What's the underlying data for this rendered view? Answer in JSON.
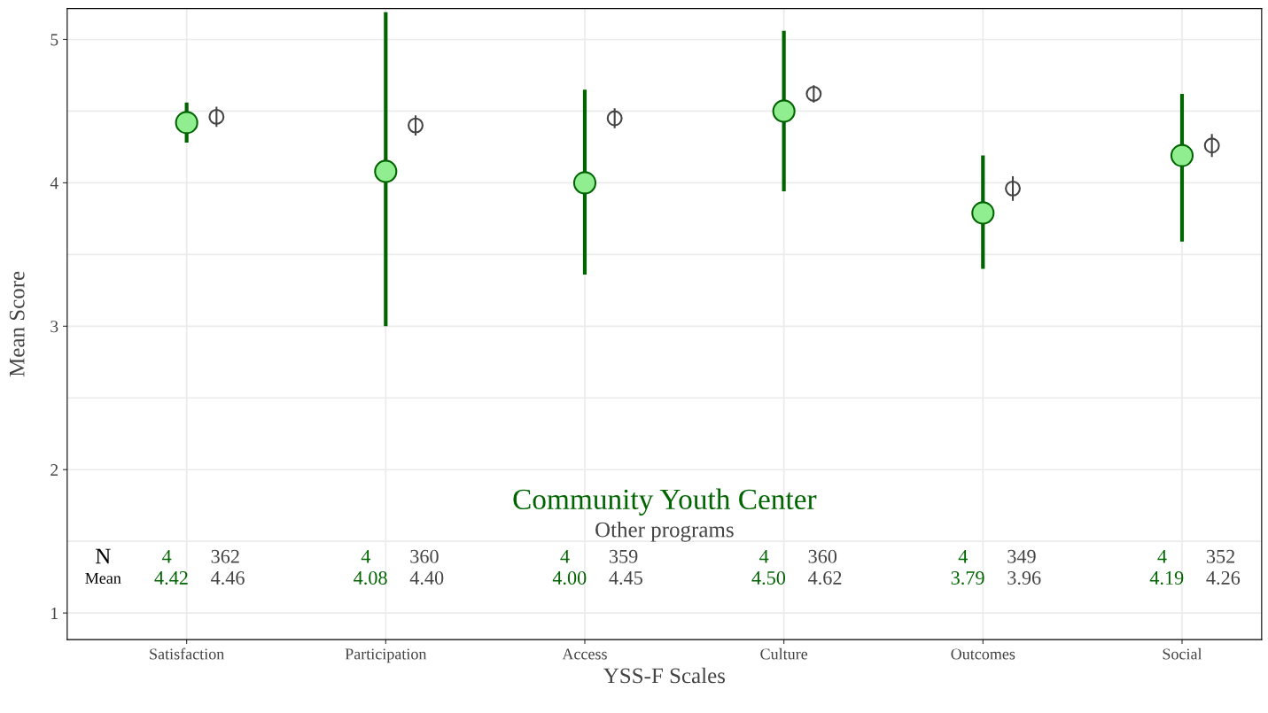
{
  "chart_data": {
    "type": "scatter",
    "xlabel": "YSS-F Scales",
    "ylabel": "Mean Score",
    "categories": [
      "Satisfaction",
      "Participation",
      "Access",
      "Culture",
      "Outcomes",
      "Social"
    ],
    "series": [
      {
        "name": "Community Youth Center",
        "color": "#006400",
        "marker": "circle",
        "values": [
          4.42,
          4.08,
          4.0,
          4.5,
          3.79,
          4.19
        ],
        "errors": [
          [
            4.28,
            4.56
          ],
          [
            3.0,
            5.19
          ],
          [
            3.36,
            4.65
          ],
          [
            3.94,
            5.06
          ],
          [
            3.4,
            4.19
          ],
          [
            3.59,
            4.62
          ]
        ]
      },
      {
        "name": "Other programs",
        "color": "#444444",
        "marker": "circle",
        "values": [
          4.46,
          4.4,
          4.45,
          4.62,
          3.96,
          4.26
        ],
        "errors": [
          0.07,
          0.07,
          0.07,
          0.06,
          0.085,
          0.08
        ]
      }
    ],
    "annotations": [
      "N",
      "Mean",
      "4",
      "362",
      "4.42",
      "4.46",
      "4",
      "360",
      "4.08",
      "4.40",
      "4",
      "359",
      "4.00",
      "4.45",
      "4",
      "360",
      "4.50",
      "4.62",
      "4",
      "349",
      "3.79",
      "3.96",
      "4",
      "352",
      "4.19",
      "4.26"
    ],
    "ylim": [
      0.815,
      5.215
    ],
    "yticks": [
      1,
      {
        "value": 1.5,
        "label": null
      },
      2,
      {
        "value": 2.5,
        "label": null
      },
      3,
      {
        "value": 3.5,
        "label": null
      },
      4,
      {
        "value": 4.5,
        "label": null
      },
      5
    ],
    "grid": true,
    "legend": "bottom"
  }
}
